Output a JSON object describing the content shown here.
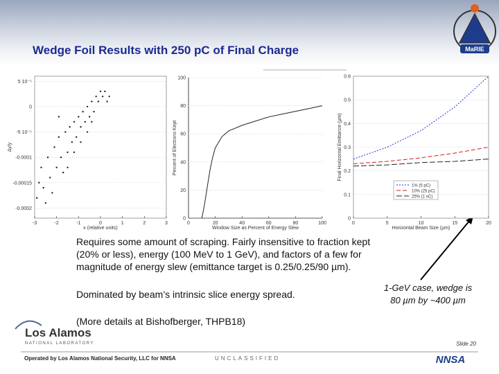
{
  "title": "Wedge Foil Results with 250 pC of Final Charge",
  "panels": [
    {
      "type": "scatter",
      "xlabel": "x (relative units)",
      "ylabel": "Δy/y",
      "xlim": [
        -3,
        3
      ],
      "ylim": [
        -0.00022,
        6e-05
      ],
      "xticks": [
        -3,
        -2,
        -1,
        0,
        1,
        2,
        3
      ],
      "yticks": [
        {
          "value": 5e-05,
          "label": "5 10⁻⁵"
        },
        0,
        {
          "value": -5e-05,
          "label": "-5 10⁻⁵"
        },
        -0.0001,
        -0.00015,
        -0.0002
      ],
      "series": [
        {
          "color": "#222222",
          "x": [
            -2.9,
            -2.7,
            -2.6,
            -2.4,
            -2.3,
            -2.1,
            -2.0,
            -1.9,
            -1.8,
            -1.6,
            -1.5,
            -1.4,
            -1.3,
            -1.2,
            -1.1,
            -1.0,
            -0.9,
            -0.8,
            -0.7,
            -0.6,
            -0.5,
            -0.4,
            -0.3,
            -0.2,
            -0.1,
            0,
            0.1,
            0.2,
            0.3,
            0.4,
            -2.5,
            -2.2,
            -1.7,
            -1.5,
            -1.2,
            -0.9,
            -0.6,
            -0.4,
            -2.8,
            -1.9
          ],
          "values": [
            -0.00018,
            -0.00012,
            -0.00016,
            -0.0001,
            -0.00014,
            -8e-05,
            -0.00012,
            -6e-05,
            -0.0001,
            -5e-05,
            -9e-05,
            -4e-05,
            -7e-05,
            -3e-05,
            -6e-05,
            -2e-05,
            -4e-05,
            -1e-05,
            -3e-05,
            0,
            -2e-05,
            1e-05,
            -1e-05,
            2e-05,
            1e-05,
            3e-05,
            2e-05,
            3e-05,
            1e-05,
            2e-05,
            -0.00019,
            -0.00017,
            -0.00013,
            -0.00012,
            -9e-05,
            -7e-05,
            -5e-05,
            -3e-05,
            -0.00015,
            -2e-05
          ]
        }
      ]
    },
    {
      "type": "line",
      "xlabel": "Window Size as Percent of Energy Slew",
      "ylabel": "Percent of Electrons Kept",
      "xlim": [
        0,
        100
      ],
      "ylim": [
        0,
        100
      ],
      "xticks": [
        0,
        20,
        40,
        60,
        80,
        100
      ],
      "yticks": [
        0,
        20,
        40,
        60,
        80,
        100
      ],
      "series": [
        {
          "color": "#222222",
          "dash": "none",
          "x": [
            10,
            12,
            14,
            16,
            18,
            20,
            25,
            30,
            40,
            50,
            60,
            70,
            80,
            90,
            100
          ],
          "values": [
            0,
            10,
            22,
            34,
            43,
            50,
            58,
            62,
            66,
            69,
            72,
            74,
            76,
            78,
            80
          ]
        }
      ]
    },
    {
      "type": "line",
      "xlabel": "Horizontal Beam Size (µm)",
      "ylabel": "Final Horizontal Emittance (µm)",
      "xlim": [
        0,
        20
      ],
      "ylim": [
        0,
        0.6
      ],
      "xticks": [
        0,
        5,
        10,
        15,
        20
      ],
      "yticks": [
        0,
        0.1,
        0.2,
        0.3,
        0.4,
        0.5,
        0.6
      ],
      "series": [
        {
          "name": "1% (5 pC)",
          "color": "#2233cc",
          "dash": "2 2",
          "x": [
            0,
            5,
            10,
            15,
            20
          ],
          "values": [
            0.25,
            0.3,
            0.37,
            0.47,
            0.6
          ]
        },
        {
          "name": "10% (25 pC)",
          "color": "#cc2222",
          "dash": "6 3",
          "x": [
            0,
            5,
            10,
            15,
            20
          ],
          "values": [
            0.23,
            0.24,
            0.255,
            0.275,
            0.3
          ]
        },
        {
          "name": "25% (1 nC)",
          "color": "#222222",
          "dash": "8 3",
          "x": [
            0,
            5,
            10,
            15,
            20
          ],
          "values": [
            0.22,
            0.225,
            0.235,
            0.24,
            0.25
          ]
        }
      ]
    }
  ],
  "body": {
    "paragraph1": [
      "Requires some amount of scraping. Fairly insensitive to fraction kept",
      "(20% or less), energy (100 MeV to 1 GeV), and factors of a few for",
      "magnitude of energy slew (emittance target is 0.25/0.25/90 µm)."
    ],
    "paragraph2": "Dominated by beam’s intrinsic slice energy spread.",
    "paragraph3": "(More details at Bishofberger, THPB18)"
  },
  "note": [
    "1-GeV case, wedge is",
    "80 µm by ~400 µm"
  ],
  "footer": {
    "logo_name": "Los Alamos",
    "logo_sub": "NATIONAL LABORATORY",
    "slide": "Slide 20",
    "operated": "Operated by Los Alamos National Security, LLC for NNSA",
    "classification": "UNCLASSIFIED",
    "nnsa": "NNSA",
    "marie": "MaRIE"
  }
}
